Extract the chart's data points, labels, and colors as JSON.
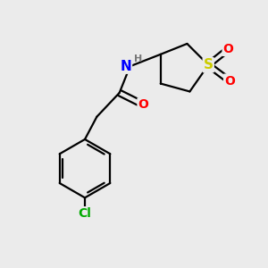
{
  "background_color": "#ebebeb",
  "bond_color": "#000000",
  "bond_width": 1.6,
  "atom_colors": {
    "N": "#0000ff",
    "O": "#ff0000",
    "S": "#cccc00",
    "Cl": "#00aa00",
    "H": "#777777",
    "C": "#000000"
  },
  "font_size": 9,
  "figsize": [
    3.0,
    3.0
  ],
  "dpi": 100,
  "xlim": [
    0,
    10
  ],
  "ylim": [
    0,
    10
  ]
}
